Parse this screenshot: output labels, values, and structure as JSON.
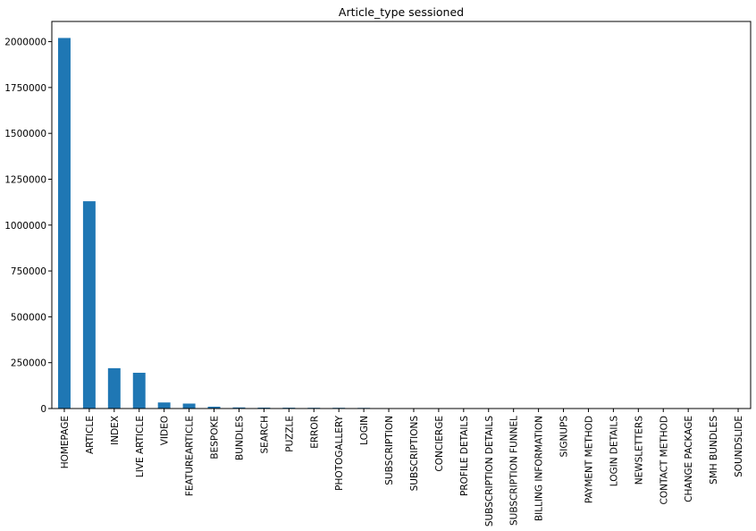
{
  "chart_data": {
    "type": "bar",
    "title": "Article_type sessioned",
    "xlabel": "",
    "ylabel": "",
    "categories": [
      "HOMEPAGE",
      "ARTICLE",
      "INDEX",
      "LIVE ARTICLE",
      "VIDEO",
      "FEATUREARTICLE",
      "BESPOKE",
      "BUNDLES",
      "SEARCH",
      "PUZZLE",
      "ERROR",
      "PHOTOGALLERY",
      "LOGIN",
      "SUBSCRIPTION",
      "SUBSCRIPTIONS",
      "CONCIERGE",
      "PROFILE DETAILS",
      "SUBSCRIPTION DETAILS",
      "SUBSCRIPTION FUNNEL",
      "BILLING INFORMATION",
      "SIGNUPS",
      "PAYMENT METHOD",
      "LOGIN DETAILS",
      "NEWSLETTERS",
      "CONTACT METHOD",
      "CHANGE PACKAGE",
      "SMH BUNDLES",
      "SOUNDSLIDE"
    ],
    "values": [
      2020000,
      1130000,
      220000,
      195000,
      33000,
      27000,
      10000,
      6000,
      5000,
      4500,
      4000,
      4000,
      3500,
      0,
      0,
      0,
      0,
      0,
      0,
      0,
      0,
      0,
      0,
      0,
      0,
      0,
      0,
      0
    ],
    "ylim": [
      0,
      2110000
    ],
    "yticks": [
      0,
      250000,
      500000,
      750000,
      1000000,
      1250000,
      1500000,
      1750000,
      2000000
    ],
    "ytick_labels": [
      "0",
      "250000",
      "500000",
      "750000",
      "1000000",
      "1250000",
      "1500000",
      "1750000",
      "2000000"
    ],
    "bar_color": "#1f77b4",
    "grid": false,
    "legend": "none"
  }
}
